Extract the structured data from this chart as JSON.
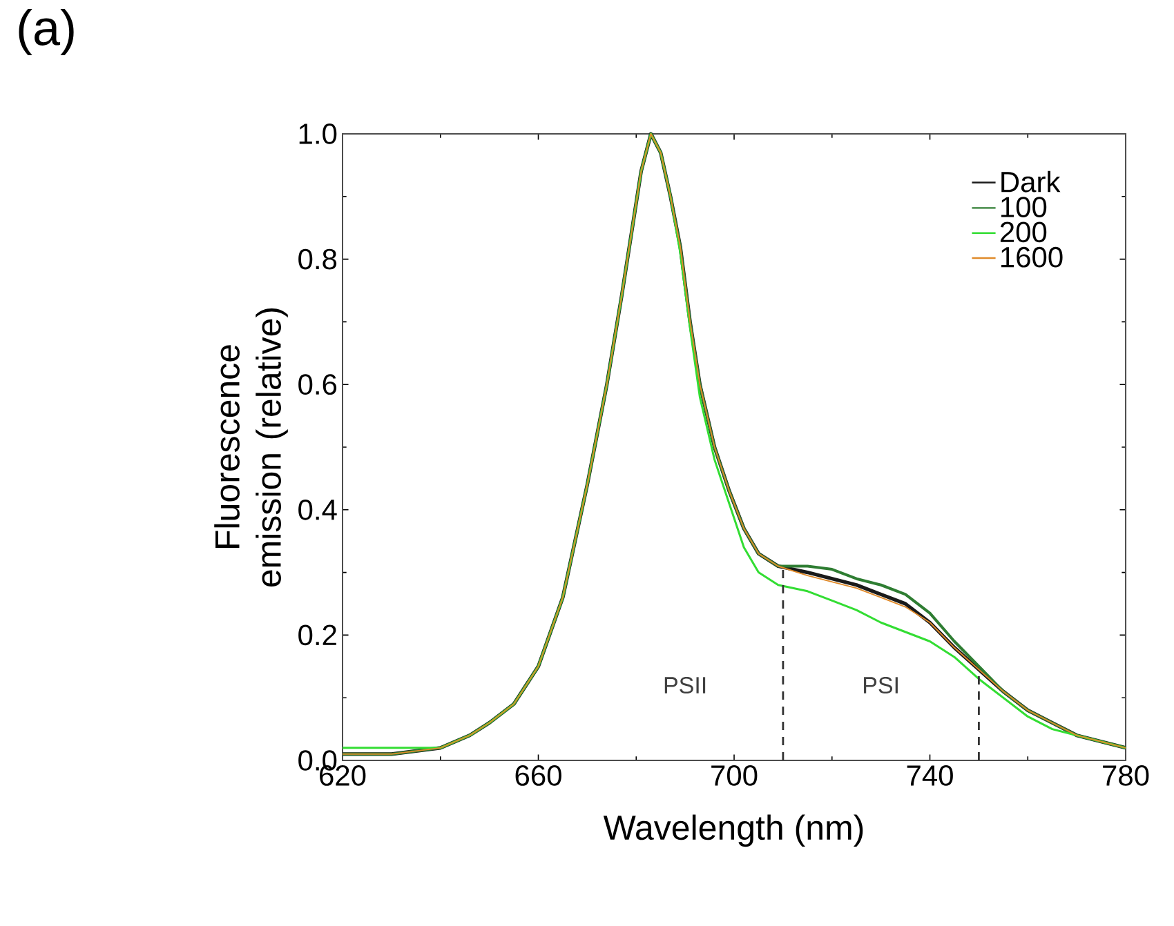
{
  "chart_data": {
    "type": "line",
    "title": "(a)",
    "xlabel": "Wavelength (nm)",
    "ylabel": "Fluorescence emission (relative)",
    "xlim": [
      620,
      780
    ],
    "xticks": [
      620,
      660,
      700,
      740,
      780
    ],
    "ylim": [
      0,
      1
    ],
    "yticks": [
      {
        "value": 0,
        "label": "0.0"
      },
      {
        "value": 0.2,
        "label": "0.2"
      },
      {
        "value": 0.4,
        "label": "0.4"
      },
      {
        "value": 0.6,
        "label": "0.6"
      },
      {
        "value": 0.8,
        "label": "0.8"
      },
      {
        "value": 1,
        "label": "1.0"
      }
    ],
    "x": [
      620,
      630,
      640,
      646,
      650,
      655,
      660,
      665,
      670,
      674,
      677,
      679,
      681,
      683,
      685,
      687,
      689,
      691,
      693,
      696,
      699,
      702,
      705,
      709,
      715,
      720,
      725,
      730,
      735,
      740,
      745,
      750,
      755,
      760,
      765,
      770,
      775,
      780
    ],
    "series": [
      {
        "name": "Dark",
        "color": "#1a1a1a",
        "values": [
          0.01,
          0.01,
          0.02,
          0.04,
          0.06,
          0.09,
          0.15,
          0.26,
          0.44,
          0.6,
          0.74,
          0.84,
          0.94,
          1.0,
          0.97,
          0.9,
          0.82,
          0.7,
          0.6,
          0.5,
          0.43,
          0.37,
          0.33,
          0.31,
          0.3,
          0.29,
          0.28,
          0.265,
          0.25,
          0.22,
          0.18,
          0.145,
          0.11,
          0.08,
          0.06,
          0.04,
          0.03,
          0.02
        ]
      },
      {
        "name": "100",
        "color": "#2e7d32",
        "values": [
          0.01,
          0.01,
          0.02,
          0.04,
          0.06,
          0.09,
          0.15,
          0.26,
          0.44,
          0.6,
          0.74,
          0.84,
          0.94,
          1.0,
          0.97,
          0.9,
          0.82,
          0.7,
          0.6,
          0.5,
          0.43,
          0.37,
          0.33,
          0.31,
          0.31,
          0.305,
          0.29,
          0.28,
          0.265,
          0.235,
          0.19,
          0.15,
          0.11,
          0.08,
          0.06,
          0.04,
          0.03,
          0.02
        ]
      },
      {
        "name": "200",
        "color": "#33dd33",
        "values": [
          0.02,
          0.02,
          0.02,
          0.04,
          0.06,
          0.09,
          0.15,
          0.26,
          0.44,
          0.6,
          0.74,
          0.84,
          0.94,
          1.0,
          0.97,
          0.9,
          0.81,
          0.69,
          0.58,
          0.48,
          0.41,
          0.34,
          0.3,
          0.28,
          0.27,
          0.255,
          0.24,
          0.22,
          0.205,
          0.19,
          0.165,
          0.13,
          0.1,
          0.07,
          0.05,
          0.04,
          0.03,
          0.02
        ]
      },
      {
        "name": "1600",
        "color": "#e08a2a",
        "values": [
          0.01,
          0.01,
          0.02,
          0.04,
          0.06,
          0.09,
          0.15,
          0.26,
          0.44,
          0.6,
          0.74,
          0.84,
          0.94,
          1.0,
          0.97,
          0.9,
          0.82,
          0.7,
          0.6,
          0.5,
          0.43,
          0.37,
          0.33,
          0.31,
          0.295,
          0.285,
          0.275,
          0.26,
          0.245,
          0.22,
          0.18,
          0.145,
          0.11,
          0.08,
          0.06,
          0.04,
          0.03,
          0.02
        ]
      }
    ],
    "ref_lines": [
      {
        "axis": "x",
        "value": 710,
        "line_style": "dashed"
      },
      {
        "axis": "x",
        "value": 750,
        "line_style": "dashed"
      }
    ],
    "annotations": [
      "PSII",
      "PSI"
    ],
    "legend": "top right",
    "line_style": "solid",
    "marker": "none",
    "grid": false
  }
}
